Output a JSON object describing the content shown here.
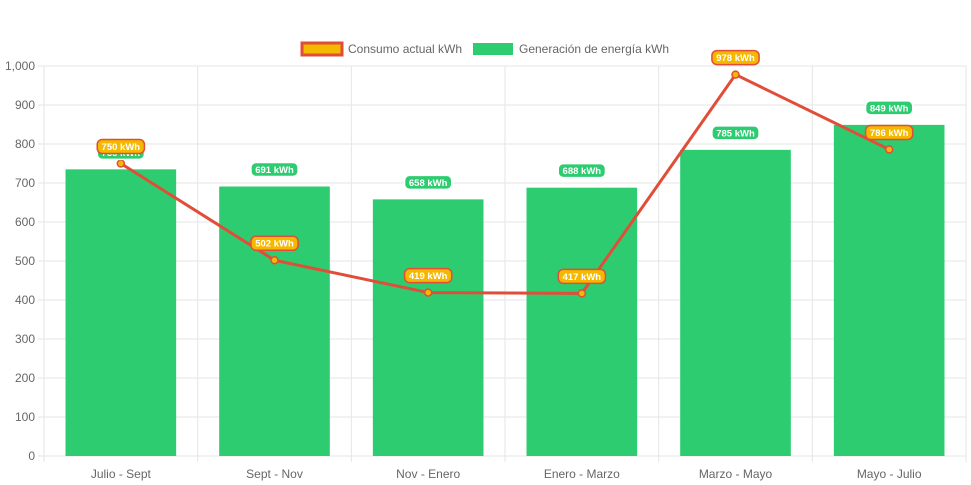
{
  "chart_data": {
    "type": "bar",
    "categories": [
      "Julio - Sept",
      "Sept - Nov",
      "Nov - Enero",
      "Enero - Marzo",
      "Marzo - Mayo",
      "Mayo - Julio"
    ],
    "series": [
      {
        "name": "Consumo actual kWh",
        "type": "line",
        "values": [
          750,
          502,
          419,
          417,
          978,
          786
        ],
        "labels": [
          "750 kWh",
          "502 kWh",
          "419 kWh",
          "417 kWh",
          "978 kWh",
          "786 kWh"
        ],
        "color": "#e04e39",
        "label_bg": "#f5b800"
      },
      {
        "name": "Generación de energía kWh",
        "type": "bar",
        "values": [
          735,
          691,
          658,
          688,
          785,
          849
        ],
        "labels": [
          "735 kWh",
          "691 kWh",
          "658 kWh",
          "688 kWh",
          "785 kWh",
          "849 kWh"
        ],
        "color": "#2ecc71",
        "label_bg": "#2ecc71"
      }
    ],
    "y_ticks": [
      "0",
      "100",
      "200",
      "300",
      "400",
      "500",
      "600",
      "700",
      "800",
      "900",
      "1,000"
    ],
    "ylim": [
      0,
      1000
    ],
    "grid": true,
    "legend": "top-center",
    "title": "",
    "xlabel": "",
    "ylabel": ""
  }
}
